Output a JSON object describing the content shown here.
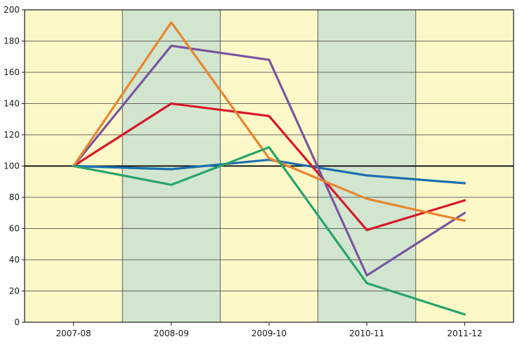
{
  "chart_data": {
    "type": "line",
    "categories": [
      "2007-08",
      "2008-09",
      "2009-10",
      "2010-11",
      "2011-12"
    ],
    "yticks": [
      0,
      20,
      40,
      60,
      80,
      100,
      120,
      140,
      160,
      180,
      200
    ],
    "ylim": [
      0,
      200
    ],
    "grid": true,
    "legend": "none",
    "reference_line": 100,
    "band_colors": [
      "#fdf8c8",
      "#d2e6cf",
      "#fdf8c8",
      "#d2e6cf",
      "#fdf8c8"
    ],
    "series": [
      {
        "color": "#1b6fae",
        "values": [
          100,
          98,
          104,
          94,
          89
        ]
      },
      {
        "color": "#d7182a",
        "values": [
          100,
          140,
          132,
          59,
          78
        ]
      },
      {
        "color": "#7a55a0",
        "values": [
          100,
          177,
          168,
          30,
          70
        ]
      },
      {
        "color": "#e8852f",
        "values": [
          100,
          192,
          105,
          79,
          65
        ]
      },
      {
        "color": "#27a46b",
        "values": [
          100,
          88,
          112,
          25,
          5
        ]
      }
    ]
  }
}
